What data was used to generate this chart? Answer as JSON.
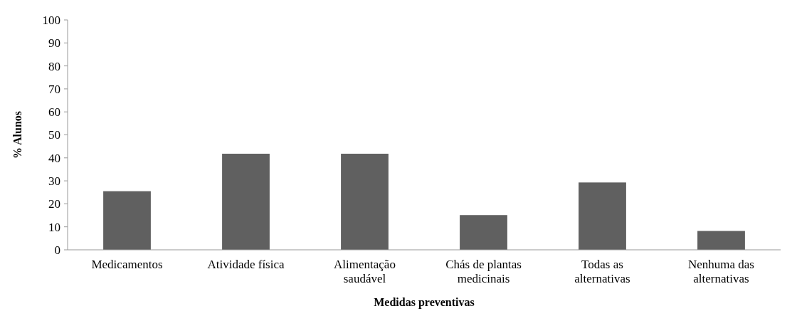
{
  "chart_data": {
    "type": "bar",
    "xlabel": "Medidas preventivas",
    "ylabel": "% Alunos",
    "categories": [
      "Medicamentos",
      "Atividade física",
      "Alimentação saudável",
      "Chás de plantas medicinais",
      "Todas as alternativas",
      "Nenhuma das alternativas"
    ],
    "values": [
      25.5,
      41.8,
      41.8,
      15.1,
      29.3,
      8.2
    ],
    "color": "#606060",
    "ylim": [
      0,
      100
    ],
    "yticks": [
      0,
      10,
      20,
      30,
      40,
      50,
      60,
      70,
      80,
      90,
      100
    ],
    "grid": false
  }
}
